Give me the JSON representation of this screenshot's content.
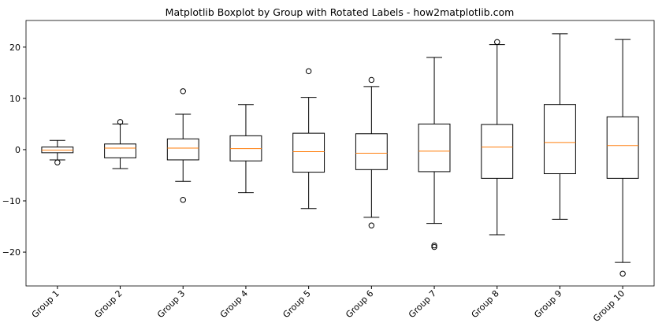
{
  "chart_data": {
    "type": "boxplot",
    "title": "Matplotlib Boxplot by Group with Rotated Labels - how2matplotlib.com",
    "categories": [
      "Group 1",
      "Group 2",
      "Group 3",
      "Group 4",
      "Group 5",
      "Group 6",
      "Group 7",
      "Group 8",
      "Group 9",
      "Group 10"
    ],
    "boxes": [
      {
        "low": -2.0,
        "q1": -0.6,
        "median": -0.1,
        "q3": 0.5,
        "high": 1.8,
        "outliers": [
          -2.5
        ]
      },
      {
        "low": -3.7,
        "q1": -1.6,
        "median": 0.3,
        "q3": 1.1,
        "high": 5.0,
        "outliers": [
          5.4
        ]
      },
      {
        "low": -6.2,
        "q1": -2.0,
        "median": 0.3,
        "q3": 2.1,
        "high": 6.9,
        "outliers": [
          11.4,
          -9.8
        ]
      },
      {
        "low": -8.4,
        "q1": -2.2,
        "median": 0.2,
        "q3": 2.7,
        "high": 8.8,
        "outliers": []
      },
      {
        "low": -11.5,
        "q1": -4.4,
        "median": -0.4,
        "q3": 3.2,
        "high": 10.2,
        "outliers": [
          15.3
        ]
      },
      {
        "low": -13.2,
        "q1": -3.9,
        "median": -0.7,
        "q3": 3.1,
        "high": 12.3,
        "outliers": [
          13.6,
          -14.8
        ]
      },
      {
        "low": -14.4,
        "q1": -4.3,
        "median": -0.3,
        "q3": 5.0,
        "high": 18.0,
        "outliers": [
          -18.7,
          -19.0
        ]
      },
      {
        "low": -16.6,
        "q1": -5.6,
        "median": 0.5,
        "q3": 4.9,
        "high": 20.5,
        "outliers": [
          21.0
        ]
      },
      {
        "low": -13.6,
        "q1": -4.7,
        "median": 1.4,
        "q3": 8.8,
        "high": 22.6,
        "outliers": []
      },
      {
        "low": -22.0,
        "q1": -5.6,
        "median": 0.8,
        "q3": 6.4,
        "high": 21.5,
        "outliers": [
          -24.2
        ]
      }
    ],
    "box_color": "#000000",
    "median_color": "#ff7f0e",
    "ylim": [
      -26.6,
      25.2
    ],
    "yticks": [
      {
        "value": -20,
        "label": "−20"
      },
      {
        "value": -10,
        "label": "−10"
      },
      0,
      10,
      20
    ]
  }
}
